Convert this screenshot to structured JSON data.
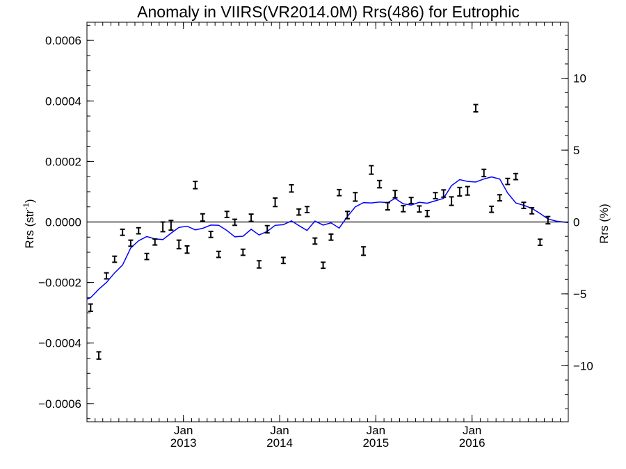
{
  "chart_data": {
    "type": "line",
    "title": "Anomaly in VIIRS(VR2014.0M) Rrs(486) for Eutrophic",
    "ylabel_left": "Rrs (str",
    "ylabel_left_sup": "-1",
    "ylabel_left_close": ")",
    "ylabel_right": "Rrs (%)",
    "x_range": [
      "2012-01-01",
      "2016-12-31"
    ],
    "ylim_left": [
      -0.00066,
      0.00066
    ],
    "ylim_right": [
      -13.9,
      13.9
    ],
    "zero_line": true,
    "x_ticks": [
      {
        "date": "2013-01-01",
        "label_month": "Jan",
        "label_year": "2013"
      },
      {
        "date": "2014-01-01",
        "label_month": "Jan",
        "label_year": "2014"
      },
      {
        "date": "2015-01-01",
        "label_month": "Jan",
        "label_year": "2015"
      },
      {
        "date": "2016-01-01",
        "label_month": "Jan",
        "label_year": "2016"
      }
    ],
    "y_ticks_left": [
      {
        "value": 0.0006,
        "label": "0.0006"
      },
      {
        "value": 0.0004,
        "label": "0.0004"
      },
      {
        "value": 0.0002,
        "label": "0.0002"
      },
      {
        "value": 0.0,
        "label": "0.0000"
      },
      {
        "value": -0.0002,
        "label": "−0.0002"
      },
      {
        "value": -0.0004,
        "label": "−0.0004"
      },
      {
        "value": -0.0006,
        "label": "−0.0006"
      }
    ],
    "y_ticks_right": [
      {
        "value": 10,
        "label": "10"
      },
      {
        "value": 5,
        "label": "5"
      },
      {
        "value": 0,
        "label": "0"
      },
      {
        "value": -5,
        "label": "−5"
      },
      {
        "value": -10,
        "label": "−10"
      }
    ],
    "series": [
      {
        "style": "errorbar",
        "color": "#000000",
        "points": [
          {
            "date": "2012-01-15",
            "y": -0.000283,
            "err": 1.2e-05
          },
          {
            "date": "2012-02-15",
            "y": -0.000441,
            "err": 1.2e-05
          },
          {
            "date": "2012-03-15",
            "y": -0.000178,
            "err": 1e-05
          },
          {
            "date": "2012-04-15",
            "y": -0.000123,
            "err": 1e-05
          },
          {
            "date": "2012-05-15",
            "y": -3.4e-05,
            "err": 1e-05
          },
          {
            "date": "2012-06-15",
            "y": -7e-05,
            "err": 1e-05
          },
          {
            "date": "2012-07-15",
            "y": -2.9e-05,
            "err": 1e-05
          },
          {
            "date": "2012-08-15",
            "y": -0.000114,
            "err": 1e-05
          },
          {
            "date": "2012-09-15",
            "y": -6.6e-05,
            "err": 1e-05
          },
          {
            "date": "2012-10-15",
            "y": -1.6e-05,
            "err": 1.6e-05
          },
          {
            "date": "2012-11-15",
            "y": -1.1e-05,
            "err": 1.6e-05
          },
          {
            "date": "2012-12-15",
            "y": -7.4e-05,
            "err": 1.4e-05
          },
          {
            "date": "2013-01-15",
            "y": -9.1e-05,
            "err": 1.2e-05
          },
          {
            "date": "2013-02-15",
            "y": 0.000122,
            "err": 1.2e-05
          },
          {
            "date": "2013-03-15",
            "y": 1.5e-05,
            "err": 1.2e-05
          },
          {
            "date": "2013-04-15",
            "y": -4.1e-05,
            "err": 1e-05
          },
          {
            "date": "2013-05-15",
            "y": -0.000107,
            "err": 1e-05
          },
          {
            "date": "2013-06-15",
            "y": 2.5e-05,
            "err": 1e-05
          },
          {
            "date": "2013-07-15",
            "y": -1e-06,
            "err": 1e-05
          },
          {
            "date": "2013-08-15",
            "y": -0.0001,
            "err": 1e-05
          },
          {
            "date": "2013-09-15",
            "y": 1.4e-05,
            "err": 1.2e-05
          },
          {
            "date": "2013-10-15",
            "y": -0.00014,
            "err": 1.2e-05
          },
          {
            "date": "2013-11-15",
            "y": -2.4e-05,
            "err": 1.2e-05
          },
          {
            "date": "2013-12-15",
            "y": 6.5e-05,
            "err": 1.4e-05
          },
          {
            "date": "2014-01-15",
            "y": -0.000127,
            "err": 1e-05
          },
          {
            "date": "2014-02-15",
            "y": 0.000111,
            "err": 1.2e-05
          },
          {
            "date": "2014-03-15",
            "y": 3.3e-05,
            "err": 1e-05
          },
          {
            "date": "2014-04-15",
            "y": 4.1e-05,
            "err": 1e-05
          },
          {
            "date": "2014-05-15",
            "y": -6.3e-05,
            "err": 1e-05
          },
          {
            "date": "2014-06-15",
            "y": -0.000143,
            "err": 1e-05
          },
          {
            "date": "2014-07-15",
            "y": -5e-05,
            "err": 1e-05
          },
          {
            "date": "2014-08-15",
            "y": 9.7e-05,
            "err": 1e-05
          },
          {
            "date": "2014-09-15",
            "y": 2.3e-05,
            "err": 1.2e-05
          },
          {
            "date": "2014-10-15",
            "y": 8.3e-05,
            "err": 1.4e-05
          },
          {
            "date": "2014-11-15",
            "y": -9.6e-05,
            "err": 1.4e-05
          },
          {
            "date": "2014-12-15",
            "y": 0.000172,
            "err": 1.4e-05
          },
          {
            "date": "2015-01-15",
            "y": 0.000125,
            "err": 1.2e-05
          },
          {
            "date": "2015-02-15",
            "y": 5.2e-05,
            "err": 1.2e-05
          },
          {
            "date": "2015-03-15",
            "y": 9.2e-05,
            "err": 1.2e-05
          },
          {
            "date": "2015-04-15",
            "y": 4.4e-05,
            "err": 1e-05
          },
          {
            "date": "2015-05-15",
            "y": 7.1e-05,
            "err": 1e-05
          },
          {
            "date": "2015-06-15",
            "y": 4.3e-05,
            "err": 1e-05
          },
          {
            "date": "2015-07-15",
            "y": 2.8e-05,
            "err": 1e-05
          },
          {
            "date": "2015-08-15",
            "y": 8.7e-05,
            "err": 1e-05
          },
          {
            "date": "2015-09-15",
            "y": 9.4e-05,
            "err": 1.2e-05
          },
          {
            "date": "2015-10-15",
            "y": 6.9e-05,
            "err": 1.4e-05
          },
          {
            "date": "2015-11-15",
            "y": 0.0001,
            "err": 1.4e-05
          },
          {
            "date": "2015-12-15",
            "y": 0.000103,
            "err": 1.4e-05
          },
          {
            "date": "2016-01-15",
            "y": 0.000376,
            "err": 1.2e-05
          },
          {
            "date": "2016-02-15",
            "y": 0.000162,
            "err": 1.2e-05
          },
          {
            "date": "2016-03-15",
            "y": 4.2e-05,
            "err": 1e-05
          },
          {
            "date": "2016-04-15",
            "y": 8e-05,
            "err": 1e-05
          },
          {
            "date": "2016-05-15",
            "y": 0.000134,
            "err": 1e-05
          },
          {
            "date": "2016-06-15",
            "y": 0.00015,
            "err": 1e-05
          },
          {
            "date": "2016-07-15",
            "y": 5.5e-05,
            "err": 1e-05
          },
          {
            "date": "2016-08-15",
            "y": 3.7e-05,
            "err": 1e-05
          },
          {
            "date": "2016-09-15",
            "y": -6.7e-05,
            "err": 1e-05
          },
          {
            "date": "2016-10-15",
            "y": 6e-06,
            "err": 1.2e-05
          }
        ]
      },
      {
        "style": "line",
        "color": "#0000ff",
        "points": [
          {
            "date": "2012-01-01",
            "y": -0.000255
          },
          {
            "date": "2012-01-15",
            "y": -0.00025
          },
          {
            "date": "2012-02-15",
            "y": -0.000222
          },
          {
            "date": "2012-03-15",
            "y": -0.0002
          },
          {
            "date": "2012-04-15",
            "y": -0.000168
          },
          {
            "date": "2012-05-15",
            "y": -0.000142
          },
          {
            "date": "2012-06-15",
            "y": -8.6e-05
          },
          {
            "date": "2012-07-15",
            "y": -6.2e-05
          },
          {
            "date": "2012-08-15",
            "y": -4.8e-05
          },
          {
            "date": "2012-09-15",
            "y": -5.6e-05
          },
          {
            "date": "2012-10-15",
            "y": -5.8e-05
          },
          {
            "date": "2012-11-15",
            "y": -3.7e-05
          },
          {
            "date": "2012-12-15",
            "y": -1.8e-05
          },
          {
            "date": "2013-01-15",
            "y": -1.4e-05
          },
          {
            "date": "2013-02-15",
            "y": -2.6e-05
          },
          {
            "date": "2013-03-15",
            "y": -2.1e-05
          },
          {
            "date": "2013-04-15",
            "y": -1e-05
          },
          {
            "date": "2013-05-15",
            "y": -1.1e-05
          },
          {
            "date": "2013-06-15",
            "y": -2.8e-05
          },
          {
            "date": "2013-07-15",
            "y": -4.9e-05
          },
          {
            "date": "2013-08-15",
            "y": -4.7e-05
          },
          {
            "date": "2013-09-15",
            "y": -2.4e-05
          },
          {
            "date": "2013-10-15",
            "y": -4.3e-05
          },
          {
            "date": "2013-11-15",
            "y": -3.1e-05
          },
          {
            "date": "2013-12-15",
            "y": -1.1e-05
          },
          {
            "date": "2014-01-15",
            "y": -9e-06
          },
          {
            "date": "2014-02-15",
            "y": 4e-06
          },
          {
            "date": "2014-03-15",
            "y": -1.2e-05
          },
          {
            "date": "2014-04-15",
            "y": -2.8e-05
          },
          {
            "date": "2014-05-15",
            "y": 3e-06
          },
          {
            "date": "2014-06-15",
            "y": -1e-05
          },
          {
            "date": "2014-07-15",
            "y": -3e-06
          },
          {
            "date": "2014-08-15",
            "y": -2e-05
          },
          {
            "date": "2014-09-15",
            "y": 1.8e-05
          },
          {
            "date": "2014-10-15",
            "y": 5e-05
          },
          {
            "date": "2014-11-15",
            "y": 6.4e-05
          },
          {
            "date": "2014-12-15",
            "y": 6.3e-05
          },
          {
            "date": "2015-01-15",
            "y": 6.6e-05
          },
          {
            "date": "2015-02-15",
            "y": 6.4e-05
          },
          {
            "date": "2015-03-15",
            "y": 7.8e-05
          },
          {
            "date": "2015-04-15",
            "y": 6e-05
          },
          {
            "date": "2015-05-15",
            "y": 5.6e-05
          },
          {
            "date": "2015-06-15",
            "y": 6.5e-05
          },
          {
            "date": "2015-07-15",
            "y": 6.2e-05
          },
          {
            "date": "2015-08-15",
            "y": 7e-05
          },
          {
            "date": "2015-09-15",
            "y": 7.8e-05
          },
          {
            "date": "2015-10-15",
            "y": 0.00012
          },
          {
            "date": "2015-11-15",
            "y": 0.00014
          },
          {
            "date": "2015-12-15",
            "y": 0.000134
          },
          {
            "date": "2016-01-15",
            "y": 0.000132
          },
          {
            "date": "2016-02-15",
            "y": 0.000142
          },
          {
            "date": "2016-03-15",
            "y": 0.000149
          },
          {
            "date": "2016-04-15",
            "y": 0.000142
          },
          {
            "date": "2016-05-15",
            "y": 9.6e-05
          },
          {
            "date": "2016-06-15",
            "y": 6.3e-05
          },
          {
            "date": "2016-07-15",
            "y": 5.5e-05
          },
          {
            "date": "2016-08-15",
            "y": 4.5e-05
          },
          {
            "date": "2016-09-15",
            "y": 2.8e-05
          },
          {
            "date": "2016-10-15",
            "y": 1e-05
          },
          {
            "date": "2016-11-15",
            "y": 3e-06
          },
          {
            "date": "2016-12-31",
            "y": -2e-06
          }
        ]
      }
    ]
  }
}
